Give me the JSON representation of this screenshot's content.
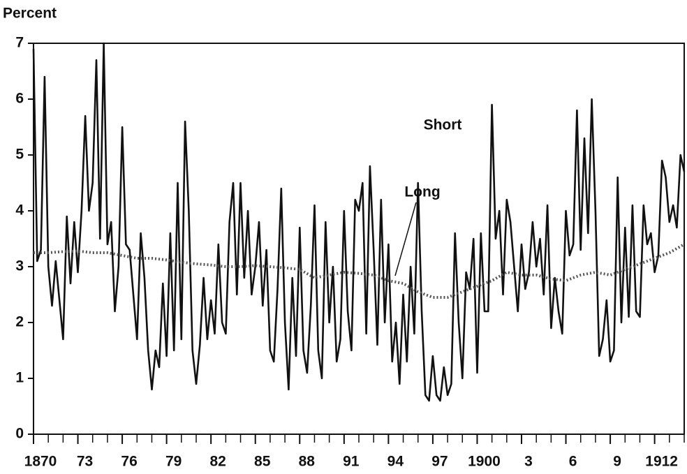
{
  "chart_data": {
    "type": "line",
    "y_label": "Percent",
    "xlim": [
      1870,
      1914
    ],
    "ylim": [
      0,
      7
    ],
    "yticks": [
      0,
      1,
      2,
      3,
      4,
      5,
      6,
      7
    ],
    "xticks": [
      1870,
      {
        "value": 1873,
        "label": "73"
      },
      {
        "value": 1876,
        "label": "76"
      },
      {
        "value": 1879,
        "label": "79"
      },
      {
        "value": 1882,
        "label": "82"
      },
      {
        "value": 1885,
        "label": "85"
      },
      {
        "value": 1888,
        "label": "88"
      },
      {
        "value": 1891,
        "label": "91"
      },
      {
        "value": 1894,
        "label": "94"
      },
      {
        "value": 1897,
        "label": "97"
      },
      1900,
      {
        "value": 1903,
        "label": "3"
      },
      {
        "value": 1906,
        "label": "6"
      },
      {
        "value": 1909,
        "label": "9"
      },
      1912
    ],
    "minor_xticks_every": 1,
    "grid": false,
    "series": [
      {
        "name": "Short",
        "color": "#111111",
        "style": "solid",
        "x": [
          1870,
          1870.25,
          1870.5,
          1870.75,
          1871,
          1871.25,
          1871.5,
          1871.75,
          1872,
          1872.25,
          1872.5,
          1872.75,
          1873,
          1873.25,
          1873.5,
          1873.75,
          1874,
          1874.25,
          1874.5,
          1874.75,
          1875,
          1875.25,
          1875.5,
          1875.75,
          1876,
          1876.25,
          1876.5,
          1876.75,
          1877,
          1877.25,
          1877.5,
          1877.75,
          1878,
          1878.25,
          1878.5,
          1878.75,
          1879,
          1879.25,
          1879.5,
          1879.75,
          1880,
          1880.25,
          1880.5,
          1880.75,
          1881,
          1881.25,
          1881.5,
          1881.75,
          1882,
          1882.25,
          1882.5,
          1882.75,
          1883,
          1883.25,
          1883.5,
          1883.75,
          1884,
          1884.25,
          1884.5,
          1884.75,
          1885,
          1885.25,
          1885.5,
          1885.75,
          1886,
          1886.25,
          1886.5,
          1886.75,
          1887,
          1887.25,
          1887.5,
          1887.75,
          1888,
          1888.25,
          1888.5,
          1888.75,
          1889,
          1889.25,
          1889.5,
          1889.75,
          1890,
          1890.25,
          1890.5,
          1890.75,
          1891,
          1891.25,
          1891.5,
          1891.75,
          1892,
          1892.25,
          1892.5,
          1892.75,
          1893,
          1893.25,
          1893.5,
          1893.75,
          1894,
          1894.25,
          1894.5,
          1894.75,
          1895,
          1895.25,
          1895.5,
          1895.75,
          1896,
          1896.25,
          1896.5,
          1896.75,
          1897,
          1897.25,
          1897.5,
          1897.75,
          1898,
          1898.25,
          1898.5,
          1898.75,
          1899,
          1899.25,
          1899.5,
          1899.75,
          1900,
          1900.25,
          1900.5,
          1900.75,
          1901,
          1901.25,
          1901.5,
          1901.75,
          1902,
          1902.25,
          1902.5,
          1902.75,
          1903,
          1903.25,
          1903.5,
          1903.75,
          1904,
          1904.25,
          1904.5,
          1904.75,
          1905,
          1905.25,
          1905.5,
          1905.75,
          1906,
          1906.25,
          1906.5,
          1906.75,
          1907,
          1907.25,
          1907.5,
          1907.75,
          1908,
          1908.25,
          1908.5,
          1908.75,
          1909,
          1909.25,
          1909.5,
          1909.75,
          1910,
          1910.25,
          1910.5,
          1910.75,
          1911,
          1911.25,
          1911.5,
          1911.75,
          1912,
          1912.25,
          1912.5,
          1912.75,
          1913,
          1913.25,
          1913.5,
          1913.75,
          1914
        ],
        "values": [
          6.9,
          3.1,
          3.3,
          6.4,
          3.0,
          2.3,
          3.1,
          2.4,
          1.7,
          3.9,
          2.7,
          3.8,
          2.9,
          4.0,
          5.7,
          4.0,
          4.5,
          6.7,
          3.5,
          7.0,
          3.4,
          3.8,
          2.2,
          3.0,
          5.5,
          3.4,
          3.3,
          2.5,
          1.7,
          3.6,
          2.8,
          1.5,
          0.8,
          1.5,
          1.2,
          2.7,
          1.4,
          3.6,
          1.5,
          4.5,
          1.7,
          5.6,
          4.0,
          1.5,
          0.9,
          1.6,
          2.8,
          1.7,
          2.4,
          1.8,
          3.4,
          2.0,
          1.8,
          3.8,
          4.5,
          2.5,
          4.5,
          2.8,
          4.0,
          2.5,
          3.0,
          3.8,
          2.3,
          3.3,
          1.5,
          1.3,
          2.6,
          4.4,
          2.0,
          0.8,
          2.8,
          1.4,
          3.7,
          1.5,
          1.1,
          2.3,
          4.1,
          1.5,
          1.0,
          3.8,
          2.0,
          3.0,
          1.3,
          1.7,
          4.0,
          2.2,
          1.5,
          4.2,
          4.0,
          4.5,
          1.8,
          4.8,
          3.3,
          1.6,
          4.2,
          2.0,
          3.4,
          1.3,
          2.0,
          0.9,
          2.5,
          1.3,
          3.0,
          1.8,
          4.5,
          2.2,
          0.7,
          0.6,
          1.4,
          0.7,
          0.6,
          1.2,
          0.7,
          0.9,
          3.6,
          2.0,
          1.0,
          2.9,
          2.6,
          3.5,
          1.1,
          3.6,
          2.2,
          2.2,
          5.9,
          3.5,
          4.0,
          2.5,
          4.2,
          3.8,
          3.0,
          2.2,
          3.4,
          2.6,
          2.9,
          3.8,
          3.0,
          3.5,
          2.5,
          4.1,
          1.9,
          2.8,
          2.2,
          1.8,
          4.0,
          3.2,
          3.4,
          5.8,
          3.3,
          5.3,
          3.6,
          6.0,
          4.0,
          1.4,
          1.7,
          2.4,
          1.3,
          1.5,
          4.6,
          2.0,
          3.7,
          2.1,
          4.1,
          2.2,
          2.1,
          4.1,
          3.4,
          3.6,
          2.9,
          3.2,
          4.9,
          4.6,
          3.8,
          4.1,
          3.7,
          5.0,
          4.7
        ]
      },
      {
        "name": "Long",
        "color": "#555555",
        "style": "dotted",
        "x": [
          1870,
          1871,
          1872,
          1873,
          1874,
          1875,
          1876,
          1877,
          1878,
          1879,
          1880,
          1881,
          1882,
          1883,
          1884,
          1885,
          1886,
          1887,
          1888,
          1889,
          1890,
          1891,
          1892,
          1893,
          1894,
          1895,
          1896,
          1897,
          1898,
          1899,
          1900,
          1901,
          1902,
          1903,
          1904,
          1905,
          1906,
          1907,
          1908,
          1909,
          1910,
          1911,
          1912,
          1913,
          1914
        ],
        "values": [
          3.25,
          3.25,
          3.27,
          3.28,
          3.25,
          3.25,
          3.2,
          3.15,
          3.15,
          3.12,
          3.08,
          3.05,
          3.03,
          3.0,
          3.0,
          3.02,
          3.0,
          2.98,
          2.95,
          2.8,
          2.85,
          2.9,
          2.88,
          2.85,
          2.75,
          2.7,
          2.55,
          2.45,
          2.45,
          2.55,
          2.65,
          2.75,
          2.9,
          2.85,
          2.85,
          2.78,
          2.75,
          2.85,
          2.9,
          2.85,
          2.95,
          3.05,
          3.15,
          3.25,
          3.4
        ]
      }
    ]
  }
}
